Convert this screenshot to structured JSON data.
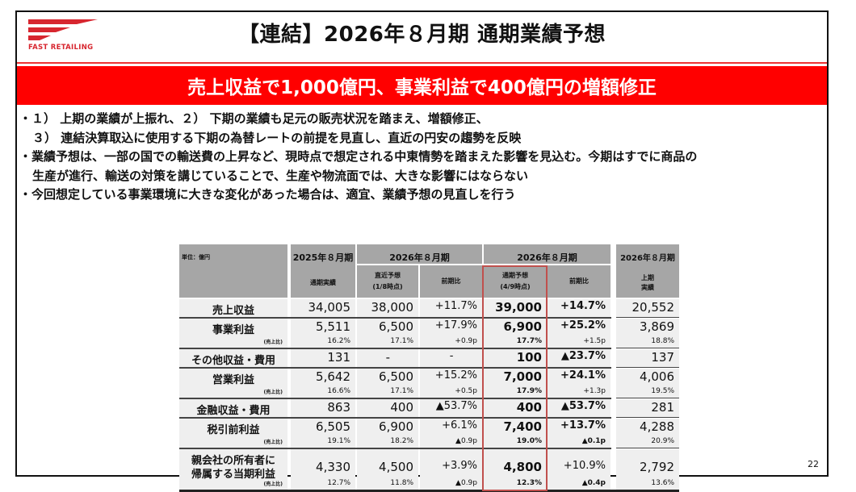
{
  "header": {
    "logo_text": "FAST RETAILING",
    "brand_color": "#d7262f",
    "title": "【連結】2026年８月期 通期業績予想"
  },
  "banner": {
    "text": "売上収益で1,000億円、事業利益で400億円の増額修正",
    "color": "#ff0000"
  },
  "bullets": [
    "・１） 上期の業績が上振れ、２） 下期の業績も足元の販売状況を踏まえ、増額修正、",
    "３） 連結決算取込に使用する下期の為替レートの前提を見直し、直近の円安の趨勢を反映",
    "・業績予想は、一部の国での輸送費の上昇など、現時点で想定される中東情勢を踏まえた影響を見込む。今期はすでに商品の",
    "生産が進行、輸送の対策を講じていることで、生産や物流面では、大きな影響にはならない",
    "・今回想定している事業環境に大きな変化があった場合は、適宜、業績予想の見直しを行う"
  ],
  "table": {
    "unit_label": "単位：億円",
    "group_headers": [
      "2025年８月期",
      "2026年８月期",
      "2026年８月期",
      "2026年８月期"
    ],
    "sub_headers": [
      "通期実績",
      "直近予想\n(1/8時点)",
      "前期比",
      "通期予想\n(4/9時点)",
      "前期比",
      "上期\n実績"
    ],
    "sub_headers_lines": {
      "c0": [
        "通期実績"
      ],
      "c1": [
        "直近予想",
        "(1/8時点)"
      ],
      "c2": [
        "前期比"
      ],
      "c3": [
        "通期予想",
        "(4/9時点)"
      ],
      "c4": [
        "前期比"
      ],
      "c5": [
        "上期",
        "実績"
      ]
    },
    "ratio_label": "(売上比)",
    "rows": [
      {
        "label": "売上収益",
        "values": [
          "34,005",
          "38,000",
          "+11.7%",
          "39,000",
          "+14.7%",
          "20,552"
        ],
        "subs": null
      },
      {
        "label": "事業利益",
        "values": [
          "5,511",
          "6,500",
          "+17.9%",
          "6,900",
          "+25.2%",
          "3,869"
        ],
        "subs": [
          "16.2%",
          "17.1%",
          "+0.9p",
          "17.7%",
          "+1.5p",
          "18.8%"
        ]
      },
      {
        "label": "その他収益・費用",
        "values": [
          "131",
          "-",
          "-",
          "100",
          "▲23.7%",
          "137"
        ],
        "subs": null
      },
      {
        "label": "営業利益",
        "values": [
          "5,642",
          "6,500",
          "+15.2%",
          "7,000",
          "+24.1%",
          "4,006"
        ],
        "subs": [
          "16.6%",
          "17.1%",
          "+0.5p",
          "17.9%",
          "+1.3p",
          "19.5%"
        ]
      },
      {
        "label": "金融収益・費用",
        "values": [
          "863",
          "400",
          "▲53.7%",
          "400",
          "▲53.7%",
          "281"
        ],
        "subs": null
      },
      {
        "label": "税引前利益",
        "values": [
          "6,505",
          "6,900",
          "+6.1%",
          "7,400",
          "+13.7%",
          "4,288"
        ],
        "subs": [
          "19.1%",
          "18.2%",
          "▲0.9p",
          "19.0%",
          "▲0.1p",
          "20.9%"
        ]
      },
      {
        "label": "親会社の所有者に\n帰属する当期利益",
        "label_lines": [
          "親会社の所有者に",
          "帰属する当期利益"
        ],
        "values": [
          "4,330",
          "4,500",
          "+3.9%",
          "4,800",
          "+10.9%",
          "2,792"
        ],
        "subs": [
          "12.7%",
          "11.8%",
          "▲0.9p",
          "12.3%",
          "▲0.4p",
          "13.6%"
        ]
      }
    ],
    "highlight_color": "#c0504d"
  },
  "footer": {
    "page_number": "22"
  }
}
